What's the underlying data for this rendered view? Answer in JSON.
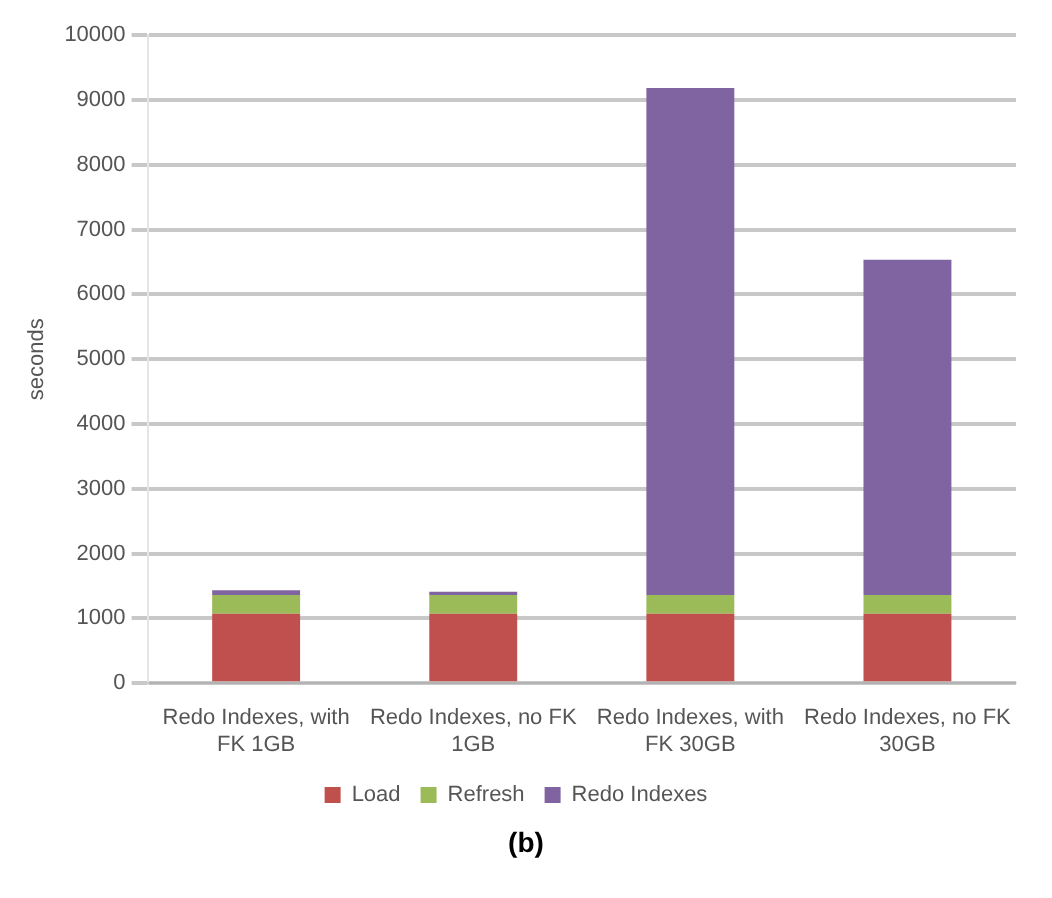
{
  "chart_data": {
    "type": "bar",
    "stacked": true,
    "ylabel": "seconds",
    "categories": [
      "Redo Indexes, with FK 1GB",
      "Redo Indexes, no FK 1GB",
      "Redo Indexes, with FK 30GB",
      "Redo Indexes, no FK 30GB"
    ],
    "series": [
      {
        "name": "Load",
        "color": "#c0504d",
        "values": [
          1070,
          1070,
          1070,
          1070
        ]
      },
      {
        "name": "Refresh",
        "color": "#9bbb59",
        "values": [
          290,
          290,
          290,
          290
        ]
      },
      {
        "name": "Redo Indexes",
        "color": "#8064a2",
        "values": [
          75,
          50,
          7825,
          5175
        ]
      }
    ],
    "ylim": [
      0,
      10000
    ],
    "yticks": [
      0,
      1000,
      2000,
      3000,
      4000,
      5000,
      6000,
      7000,
      8000,
      9000,
      10000
    ],
    "grid": "y",
    "legend": "bottom",
    "annotations": [
      "(b)"
    ]
  }
}
